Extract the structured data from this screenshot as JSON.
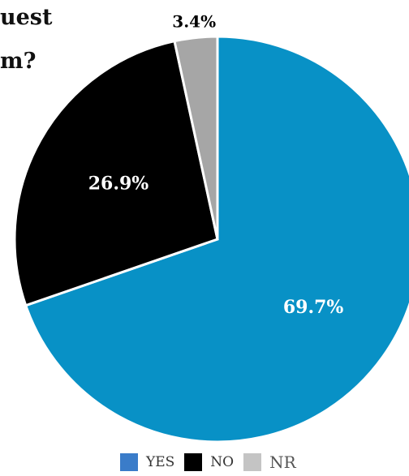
{
  "title_fragments": [
    "uest",
    "m?"
  ],
  "chart_data": {
    "type": "pie",
    "categories": [
      "YES",
      "NO",
      "NR"
    ],
    "values": [
      69.7,
      26.9,
      3.4
    ],
    "value_labels": [
      "69.7%",
      "26.9%",
      "3.4%"
    ],
    "colors": [
      "#0891c6",
      "#000000",
      "#a6a6a6"
    ],
    "label_colors": [
      "#ffffff",
      "#ffffff",
      "#000000"
    ],
    "start_angle_deg": 0,
    "direction": "clockwise",
    "legend_placement": "bottom"
  },
  "legend": [
    {
      "label": "YES",
      "color": "#3a7cc9"
    },
    {
      "label": "NO",
      "color": "#000000"
    },
    {
      "label": "NR",
      "color": "#c4c4c4"
    }
  ]
}
